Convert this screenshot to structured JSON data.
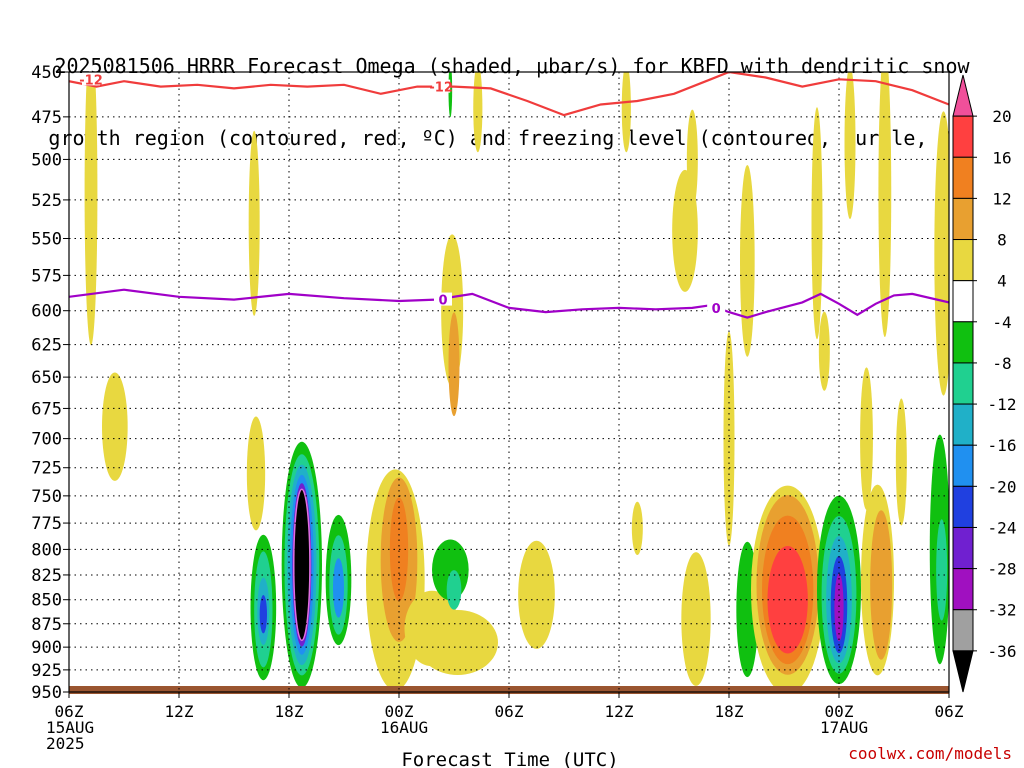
{
  "title": {
    "line1": "2025081506 HRRR Forecast Omega (shaded, μbar/s) for KBFD with dendritic snow",
    "line2": "growth region (contoured, red, ºC) and freezing level (contoured, purple, ºC)"
  },
  "credit": "coolwx.com/models",
  "chart_data": {
    "type": "heatmap",
    "xlabel": "Forecast Time (UTC)",
    "ylabel": "",
    "x_range_hours": [
      0,
      48
    ],
    "y_range_hpa": [
      450,
      950
    ],
    "y_scale": "log-pressure",
    "y_ticks": [
      450,
      475,
      500,
      525,
      550,
      575,
      600,
      625,
      650,
      675,
      700,
      725,
      750,
      775,
      800,
      825,
      850,
      875,
      900,
      925,
      950
    ],
    "x_ticks": [
      {
        "hour": 0,
        "lines": [
          "06Z",
          "15AUG",
          "2025"
        ]
      },
      {
        "hour": 6,
        "lines": [
          "12Z"
        ]
      },
      {
        "hour": 12,
        "lines": [
          "18Z"
        ]
      },
      {
        "hour": 18,
        "lines": [
          "00Z",
          "16AUG"
        ]
      },
      {
        "hour": 24,
        "lines": [
          "06Z"
        ]
      },
      {
        "hour": 30,
        "lines": [
          "12Z"
        ]
      },
      {
        "hour": 36,
        "lines": [
          "18Z"
        ]
      },
      {
        "hour": 42,
        "lines": [
          "00Z",
          "17AUG"
        ]
      },
      {
        "hour": 48,
        "lines": [
          "06Z"
        ]
      }
    ],
    "grid": true,
    "colorbar": {
      "labels": [
        "20",
        "16",
        "12",
        "8",
        "4",
        "-4",
        "-8",
        "-12",
        "-16",
        "-20",
        "-24",
        "-28",
        "-32",
        "-36"
      ],
      "colors": [
        "#f0509a",
        "#ff4040",
        "#f08020",
        "#e8a030",
        "#e8d840",
        "#ffffff",
        "#10c010",
        "#20d090",
        "#20b0c8",
        "#2090f0",
        "#2040e0",
        "#7020d0",
        "#a010c0",
        "#a0a0a0",
        "#000000"
      ]
    },
    "contours": [
      {
        "name": "-12",
        "color": "#f03c3c",
        "points": [
          [
            0,
            455
          ],
          [
            1.5,
            458
          ],
          [
            3,
            455
          ],
          [
            5,
            458
          ],
          [
            7,
            457
          ],
          [
            9,
            459
          ],
          [
            11,
            457
          ],
          [
            13,
            458
          ],
          [
            15,
            457
          ],
          [
            17,
            462
          ],
          [
            19,
            458
          ],
          [
            21,
            458
          ],
          [
            23,
            459
          ],
          [
            25,
            466
          ],
          [
            27,
            474
          ],
          [
            29,
            468
          ],
          [
            31,
            466
          ],
          [
            33,
            462
          ],
          [
            35,
            454
          ],
          [
            36,
            450
          ],
          [
            38,
            453
          ],
          [
            40,
            458
          ],
          [
            42,
            454
          ],
          [
            44,
            455
          ],
          [
            46,
            460
          ],
          [
            48,
            468
          ]
        ],
        "labels": [
          {
            "x": 1.2,
            "y": 454
          },
          {
            "x": 20.3,
            "y": 458
          }
        ]
      },
      {
        "name": "0",
        "color": "#a000c8",
        "points": [
          [
            0,
            590
          ],
          [
            3,
            585
          ],
          [
            6,
            590
          ],
          [
            9,
            592
          ],
          [
            12,
            588
          ],
          [
            15,
            591
          ],
          [
            18,
            593
          ],
          [
            20,
            592
          ],
          [
            22,
            588
          ],
          [
            24,
            598
          ],
          [
            26,
            601
          ],
          [
            28,
            599
          ],
          [
            30,
            598
          ],
          [
            32,
            599
          ],
          [
            34,
            598
          ],
          [
            35,
            596
          ],
          [
            36,
            601
          ],
          [
            37,
            605
          ],
          [
            38,
            601
          ],
          [
            40,
            594
          ],
          [
            41,
            588
          ],
          [
            42,
            595
          ],
          [
            43,
            603
          ],
          [
            44,
            595
          ],
          [
            45,
            589
          ],
          [
            46,
            588
          ],
          [
            48,
            594
          ]
        ],
        "labels": [
          {
            "x": 20.4,
            "y": 592
          },
          {
            "x": 35.3,
            "y": 598
          }
        ]
      }
    ],
    "omega_regions": [
      {
        "x": 1.2,
        "y": 520,
        "rx": 0.35,
        "ry": 95,
        "level": "4"
      },
      {
        "x": 2.5,
        "y": 690,
        "rx": 0.7,
        "ry": 45,
        "level": "4"
      },
      {
        "x": 10.1,
        "y": 540,
        "rx": 0.3,
        "ry": 60,
        "level": "4"
      },
      {
        "x": 10.2,
        "y": 730,
        "rx": 0.5,
        "ry": 50,
        "level": "4"
      },
      {
        "x": 10.6,
        "y": 858,
        "rx": 0.7,
        "ry": 75,
        "level": "-8"
      },
      {
        "x": 10.6,
        "y": 860,
        "rx": 0.5,
        "ry": 60,
        "level": "-12"
      },
      {
        "x": 10.6,
        "y": 862,
        "rx": 0.33,
        "ry": 35,
        "level": "-16"
      },
      {
        "x": 10.6,
        "y": 865,
        "rx": 0.2,
        "ry": 20,
        "level": "-24"
      },
      {
        "x": 12.7,
        "y": 815,
        "rx": 1.1,
        "ry": 120,
        "level": "-8"
      },
      {
        "x": 12.7,
        "y": 815,
        "rx": 0.95,
        "ry": 108,
        "level": "-12"
      },
      {
        "x": 12.7,
        "y": 815,
        "rx": 0.8,
        "ry": 98,
        "level": "-16"
      },
      {
        "x": 12.7,
        "y": 815,
        "rx": 0.65,
        "ry": 88,
        "level": "-20"
      },
      {
        "x": 12.7,
        "y": 815,
        "rx": 0.52,
        "ry": 80,
        "level": "-28"
      },
      {
        "x": 12.7,
        "y": 815,
        "rx": 0.44,
        "ry": 74,
        "level": "-36"
      },
      {
        "x": 14.7,
        "y": 830,
        "rx": 0.7,
        "ry": 65,
        "level": "-8"
      },
      {
        "x": 14.7,
        "y": 835,
        "rx": 0.5,
        "ry": 50,
        "level": "-12"
      },
      {
        "x": 14.7,
        "y": 838,
        "rx": 0.3,
        "ry": 30,
        "level": "-20"
      },
      {
        "x": 17.8,
        "y": 830,
        "rx": 1.6,
        "ry": 110,
        "level": "4"
      },
      {
        "x": 18.0,
        "y": 810,
        "rx": 1.0,
        "ry": 80,
        "level": "8"
      },
      {
        "x": 18.0,
        "y": 800,
        "rx": 0.5,
        "ry": 50,
        "level": "12"
      },
      {
        "x": 19.8,
        "y": 880,
        "rx": 1.5,
        "ry": 40,
        "level": "4"
      },
      {
        "x": 21.2,
        "y": 895,
        "rx": 2.2,
        "ry": 35,
        "level": "4"
      },
      {
        "x": 25.5,
        "y": 845,
        "rx": 1.0,
        "ry": 55,
        "level": "4"
      },
      {
        "x": 20.9,
        "y": 600,
        "rx": 0.6,
        "ry": 55,
        "level": "4"
      },
      {
        "x": 21.0,
        "y": 640,
        "rx": 0.3,
        "ry": 40,
        "level": "8"
      },
      {
        "x": 20.8,
        "y": 820,
        "rx": 1.0,
        "ry": 30,
        "level": "-8"
      },
      {
        "x": 21.0,
        "y": 840,
        "rx": 0.4,
        "ry": 20,
        "level": "-12"
      },
      {
        "x": 20.8,
        "y": 460,
        "rx": 0.1,
        "ry": 15,
        "level": "-8"
      },
      {
        "x": 22.3,
        "y": 470,
        "rx": 0.25,
        "ry": 25,
        "level": "4"
      },
      {
        "x": 30.4,
        "y": 470,
        "rx": 0.25,
        "ry": 25,
        "level": "4"
      },
      {
        "x": 31.0,
        "y": 780,
        "rx": 0.3,
        "ry": 25,
        "level": "4"
      },
      {
        "x": 33.6,
        "y": 545,
        "rx": 0.7,
        "ry": 40,
        "level": "4"
      },
      {
        "x": 34.0,
        "y": 500,
        "rx": 0.3,
        "ry": 30,
        "level": "4"
      },
      {
        "x": 34.2,
        "y": 870,
        "rx": 0.8,
        "ry": 70,
        "level": "4"
      },
      {
        "x": 36.0,
        "y": 700,
        "rx": 0.3,
        "ry": 90,
        "level": "4"
      },
      {
        "x": 37.0,
        "y": 565,
        "rx": 0.4,
        "ry": 65,
        "level": "4"
      },
      {
        "x": 37.0,
        "y": 860,
        "rx": 0.6,
        "ry": 70,
        "level": "-8"
      },
      {
        "x": 39.2,
        "y": 840,
        "rx": 2.0,
        "ry": 105,
        "level": "4"
      },
      {
        "x": 39.2,
        "y": 835,
        "rx": 1.7,
        "ry": 90,
        "level": "8"
      },
      {
        "x": 39.2,
        "y": 840,
        "rx": 1.4,
        "ry": 75,
        "level": "12"
      },
      {
        "x": 39.2,
        "y": 850,
        "rx": 1.1,
        "ry": 55,
        "level": "16"
      },
      {
        "x": 40.8,
        "y": 540,
        "rx": 0.3,
        "ry": 75,
        "level": "4"
      },
      {
        "x": 41.2,
        "y": 630,
        "rx": 0.3,
        "ry": 30,
        "level": "4"
      },
      {
        "x": 42.0,
        "y": 840,
        "rx": 1.2,
        "ry": 95,
        "level": "-8"
      },
      {
        "x": 42.0,
        "y": 845,
        "rx": 0.95,
        "ry": 80,
        "level": "-12"
      },
      {
        "x": 42.0,
        "y": 850,
        "rx": 0.7,
        "ry": 65,
        "level": "-16"
      },
      {
        "x": 42.0,
        "y": 855,
        "rx": 0.45,
        "ry": 50,
        "level": "-24"
      },
      {
        "x": 42.0,
        "y": 858,
        "rx": 0.25,
        "ry": 35,
        "level": "-32"
      },
      {
        "x": 42.6,
        "y": 490,
        "rx": 0.3,
        "ry": 45,
        "level": "4"
      },
      {
        "x": 44.1,
        "y": 830,
        "rx": 0.9,
        "ry": 95,
        "level": "4"
      },
      {
        "x": 44.3,
        "y": 835,
        "rx": 0.6,
        "ry": 75,
        "level": "8"
      },
      {
        "x": 44.5,
        "y": 520,
        "rx": 0.35,
        "ry": 90,
        "level": "4"
      },
      {
        "x": 43.5,
        "y": 700,
        "rx": 0.35,
        "ry": 60,
        "level": "4"
      },
      {
        "x": 45.4,
        "y": 720,
        "rx": 0.3,
        "ry": 55,
        "level": "4"
      },
      {
        "x": 47.7,
        "y": 560,
        "rx": 0.5,
        "ry": 95,
        "level": "4"
      },
      {
        "x": 47.5,
        "y": 800,
        "rx": 0.55,
        "ry": 110,
        "level": "-8"
      },
      {
        "x": 47.6,
        "y": 820,
        "rx": 0.3,
        "ry": 50,
        "level": "-12"
      }
    ]
  }
}
